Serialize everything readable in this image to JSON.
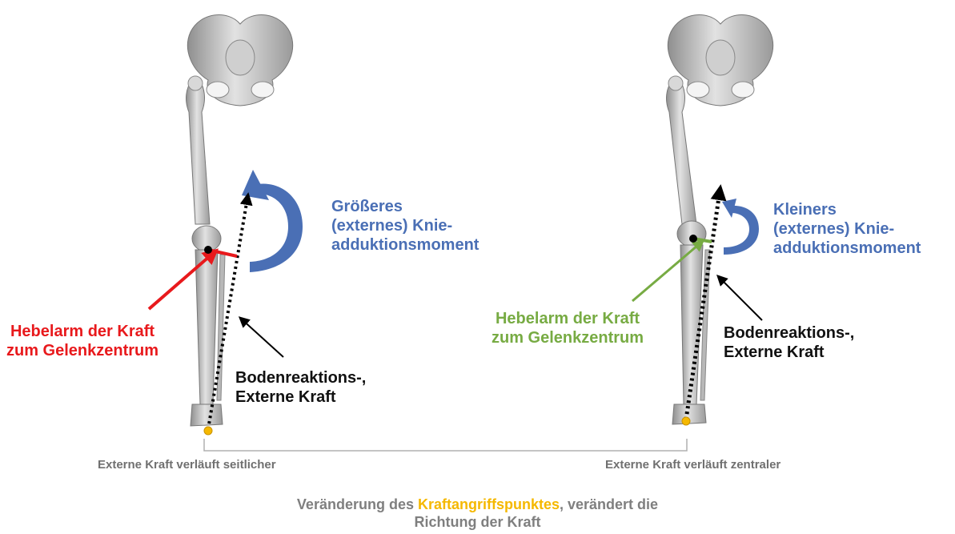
{
  "left": {
    "moment_label": [
      "Größeres",
      "(externes) Knie-",
      "adduktionsmoment"
    ],
    "force_label": [
      "Bodenreaktions-,",
      "Externe Kraft"
    ],
    "lever_label": [
      "Hebelarm der Kraft",
      "zum Gelenkzentrum"
    ],
    "bottom_note": "Externe Kraft  verläuft  seitlicher"
  },
  "right": {
    "moment_label": [
      "Kleiners",
      "(externes) Knie-",
      "adduktionsmoment"
    ],
    "force_label": [
      "Bodenreaktions-,",
      "Externe Kraft"
    ],
    "lever_label": [
      "Hebelarm der Kraft",
      "zum Gelenkzentrum"
    ],
    "bottom_note": "Externe Kraft verläuft zentraler"
  },
  "caption": {
    "before": "Veränderung des ",
    "highlight": "Kraftangriffspunktes",
    "after": ", verändert die",
    "line2": "Richtung der Kraft"
  },
  "colors": {
    "moment_blue": "#4a6fb5",
    "lever_red": "#e8191c",
    "lever_green": "#77ab43",
    "point_yellow": "#f5b800"
  }
}
